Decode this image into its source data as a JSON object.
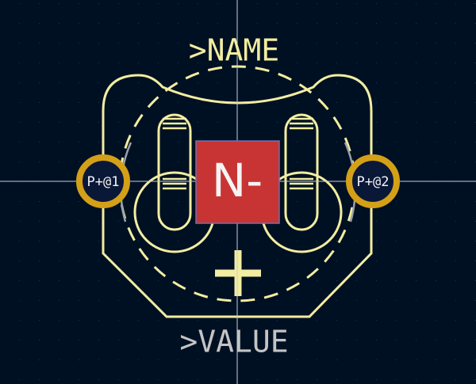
{
  "footprint": {
    "reference": ">NAME",
    "value": ">VALUE",
    "pads": [
      {
        "label": "P+@1"
      },
      {
        "label": "P+@2"
      },
      {
        "label": "N-"
      }
    ]
  }
}
